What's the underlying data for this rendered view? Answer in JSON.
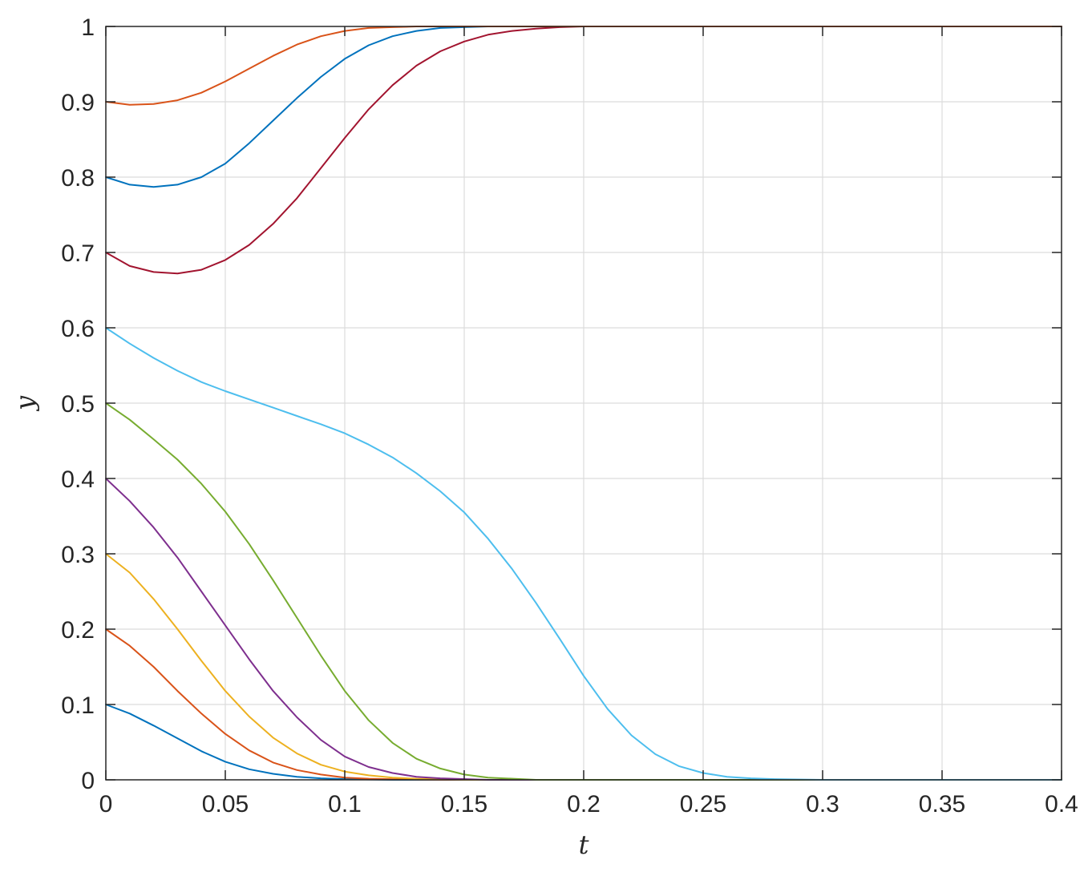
{
  "chart_data": {
    "type": "line",
    "title": "",
    "xlabel": "t",
    "ylabel": "y",
    "xlim": [
      0,
      0.4
    ],
    "ylim": [
      0,
      1
    ],
    "grid": true,
    "x_ticks": [
      "0",
      "0.05",
      "0.1",
      "0.15",
      "0.2",
      "0.25",
      "0.3",
      "0.35",
      "0.4"
    ],
    "y_ticks": [
      "0",
      "0.1",
      "0.2",
      "0.3",
      "0.4",
      "0.5",
      "0.6",
      "0.7",
      "0.8",
      "0.9",
      "1"
    ],
    "series": [
      {
        "color": "#0072BD",
        "x": [
          0,
          0.01,
          0.02,
          0.03,
          0.04,
          0.05,
          0.06,
          0.07,
          0.08,
          0.09,
          0.1,
          0.12,
          0.14,
          0.4
        ],
        "y": [
          0.1,
          0.088,
          0.072,
          0.055,
          0.038,
          0.024,
          0.014,
          0.008,
          0.004,
          0.002,
          0.001,
          0,
          0,
          0
        ]
      },
      {
        "color": "#D95319",
        "x": [
          0,
          0.01,
          0.02,
          0.03,
          0.04,
          0.05,
          0.06,
          0.07,
          0.08,
          0.09,
          0.1,
          0.11,
          0.12,
          0.14,
          0.4
        ],
        "y": [
          0.2,
          0.178,
          0.15,
          0.118,
          0.088,
          0.061,
          0.039,
          0.023,
          0.013,
          0.007,
          0.003,
          0.0015,
          0.0007,
          0,
          0
        ]
      },
      {
        "color": "#EDB120",
        "x": [
          0,
          0.01,
          0.02,
          0.03,
          0.04,
          0.05,
          0.06,
          0.07,
          0.08,
          0.09,
          0.1,
          0.11,
          0.12,
          0.13,
          0.15,
          0.4
        ],
        "y": [
          0.3,
          0.275,
          0.24,
          0.2,
          0.158,
          0.118,
          0.084,
          0.056,
          0.035,
          0.02,
          0.011,
          0.006,
          0.003,
          0.0015,
          0,
          0
        ]
      },
      {
        "color": "#7E2F8E",
        "x": [
          0,
          0.01,
          0.02,
          0.03,
          0.04,
          0.05,
          0.06,
          0.07,
          0.08,
          0.09,
          0.1,
          0.11,
          0.12,
          0.13,
          0.14,
          0.16,
          0.4
        ],
        "y": [
          0.4,
          0.37,
          0.335,
          0.295,
          0.25,
          0.205,
          0.16,
          0.118,
          0.083,
          0.053,
          0.031,
          0.017,
          0.009,
          0.004,
          0.002,
          0,
          0
        ]
      },
      {
        "color": "#77AC30",
        "x": [
          0,
          0.01,
          0.02,
          0.03,
          0.04,
          0.05,
          0.06,
          0.07,
          0.08,
          0.09,
          0.1,
          0.11,
          0.12,
          0.13,
          0.14,
          0.15,
          0.16,
          0.18,
          0.4
        ],
        "y": [
          0.5,
          0.478,
          0.452,
          0.425,
          0.393,
          0.356,
          0.313,
          0.265,
          0.215,
          0.165,
          0.118,
          0.079,
          0.049,
          0.028,
          0.015,
          0.007,
          0.003,
          0,
          0
        ]
      },
      {
        "color": "#4DBEEE",
        "x": [
          0,
          0.01,
          0.02,
          0.03,
          0.04,
          0.05,
          0.06,
          0.07,
          0.08,
          0.09,
          0.1,
          0.11,
          0.12,
          0.13,
          0.14,
          0.15,
          0.16,
          0.17,
          0.18,
          0.19,
          0.2,
          0.21,
          0.22,
          0.23,
          0.24,
          0.25,
          0.26,
          0.27,
          0.28,
          0.3,
          0.4
        ],
        "y": [
          0.6,
          0.579,
          0.56,
          0.543,
          0.528,
          0.516,
          0.505,
          0.494,
          0.483,
          0.472,
          0.46,
          0.445,
          0.428,
          0.407,
          0.383,
          0.355,
          0.32,
          0.28,
          0.235,
          0.187,
          0.138,
          0.094,
          0.059,
          0.034,
          0.018,
          0.009,
          0.004,
          0.002,
          0.001,
          0,
          0
        ]
      },
      {
        "color": "#A2142F",
        "x": [
          0,
          0.01,
          0.02,
          0.03,
          0.04,
          0.05,
          0.06,
          0.07,
          0.08,
          0.09,
          0.1,
          0.11,
          0.12,
          0.13,
          0.14,
          0.15,
          0.16,
          0.17,
          0.18,
          0.19,
          0.2,
          0.21,
          0.4
        ],
        "y": [
          0.7,
          0.682,
          0.674,
          0.672,
          0.677,
          0.69,
          0.71,
          0.738,
          0.772,
          0.812,
          0.852,
          0.89,
          0.922,
          0.948,
          0.967,
          0.98,
          0.989,
          0.994,
          0.997,
          0.999,
          1.0,
          1.0,
          1.0
        ]
      },
      {
        "color": "#0072BD",
        "x": [
          0,
          0.01,
          0.02,
          0.03,
          0.04,
          0.05,
          0.06,
          0.07,
          0.08,
          0.09,
          0.1,
          0.11,
          0.12,
          0.13,
          0.14,
          0.15,
          0.16,
          0.4
        ],
        "y": [
          0.8,
          0.79,
          0.787,
          0.79,
          0.8,
          0.818,
          0.845,
          0.875,
          0.905,
          0.933,
          0.957,
          0.975,
          0.987,
          0.994,
          0.998,
          0.999,
          1.0,
          1.0
        ]
      },
      {
        "color": "#D95319",
        "x": [
          0,
          0.01,
          0.02,
          0.03,
          0.04,
          0.05,
          0.06,
          0.07,
          0.08,
          0.09,
          0.1,
          0.11,
          0.12,
          0.13,
          0.4
        ],
        "y": [
          0.9,
          0.896,
          0.897,
          0.902,
          0.912,
          0.927,
          0.944,
          0.961,
          0.976,
          0.987,
          0.994,
          0.998,
          0.999,
          1.0,
          1.0
        ]
      }
    ]
  }
}
